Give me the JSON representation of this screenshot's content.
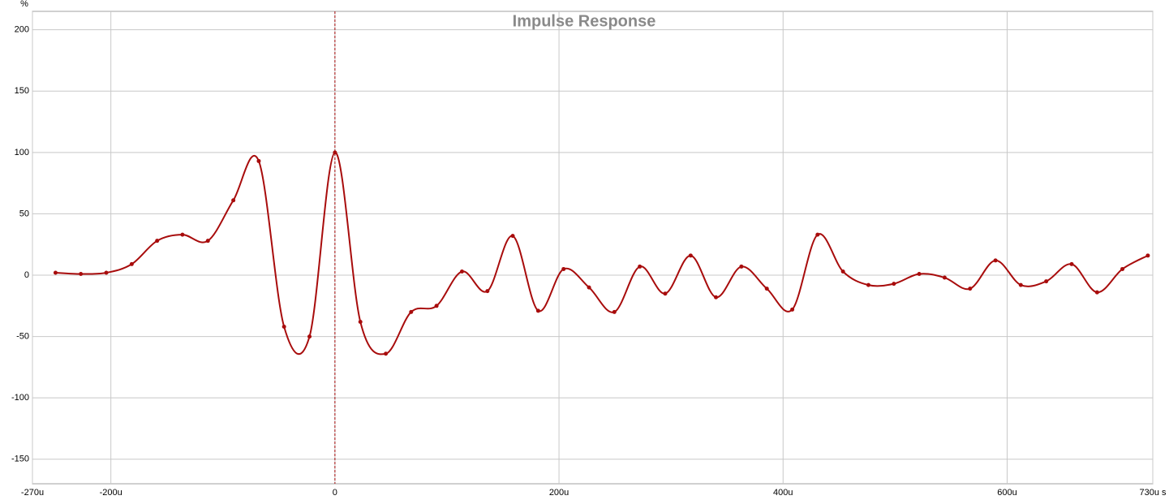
{
  "chart_data": {
    "type": "line",
    "title": "Impulse Response",
    "y_unit": "%",
    "color": "#a80c0c",
    "grid": true,
    "marker_x": 0,
    "xlim": [
      -270,
      730
    ],
    "ylim": [
      -170,
      215
    ],
    "xticks": [
      {
        "value": -270,
        "label": "-270u"
      },
      {
        "value": -200,
        "label": "-200u"
      },
      0,
      {
        "value": 200,
        "label": "200u"
      },
      {
        "value": 400,
        "label": "400u"
      },
      {
        "value": 600,
        "label": "600u"
      },
      {
        "value": 730,
        "label": "730u s"
      }
    ],
    "yticks": [
      -150,
      -100,
      -50,
      0,
      50,
      100,
      150,
      200
    ],
    "x": [
      -249.4,
      -226.8,
      -204.1,
      -181.4,
      -158.7,
      -136.1,
      -113.4,
      -90.7,
      -68.0,
      -45.4,
      -22.7,
      0,
      22.7,
      45.4,
      68.0,
      90.7,
      113.4,
      136.1,
      158.7,
      181.4,
      204.1,
      226.8,
      249.4,
      272.1,
      294.8,
      317.5,
      340.1,
      362.8,
      385.5,
      408.2,
      430.8,
      453.5,
      476.2,
      498.9,
      521.5,
      544.2,
      566.9,
      589.6,
      612.2,
      634.9,
      657.6,
      680.3,
      702.9,
      725.6
    ],
    "values": [
      2,
      1,
      2,
      9,
      28,
      33,
      28,
      61,
      93,
      -42,
      -50,
      100,
      -38,
      -64,
      -30,
      -25,
      3,
      -13,
      32,
      -29,
      5,
      -10,
      -30,
      7,
      -15,
      16,
      -18,
      7,
      -11,
      -28,
      33,
      3,
      -8,
      -7,
      1,
      -2,
      -11,
      12,
      -8,
      -5,
      9,
      -14,
      5,
      16
    ]
  }
}
